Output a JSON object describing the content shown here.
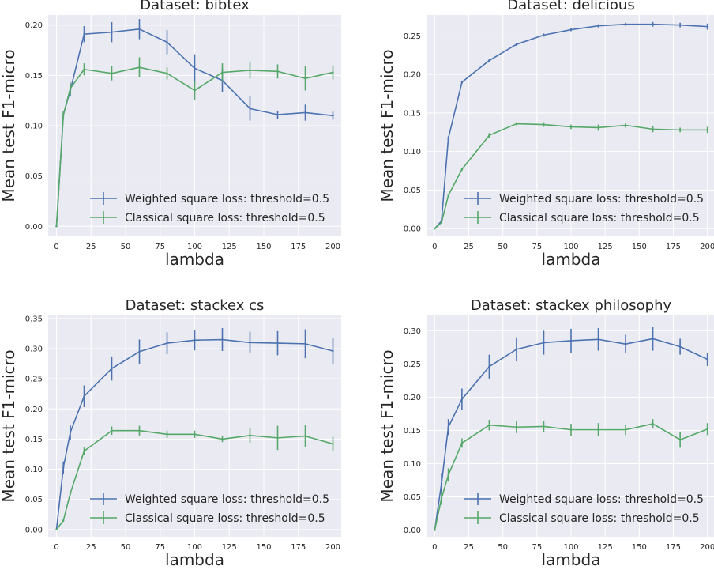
{
  "figure": {
    "series_names": [
      "Weighted square loss: threshold=0.5",
      "Classical square loss: threshold=0.5"
    ],
    "colors": {
      "weighted": "#4c72b0",
      "classical": "#55a868",
      "panel_bg": "#eaeaf2",
      "grid": "#ffffff",
      "text": "#262626"
    }
  },
  "chart_data": [
    {
      "type": "line",
      "title": "Dataset: bibtex",
      "xlabel": "lambda",
      "ylabel": "Mean test F1-micro",
      "x": [
        0,
        5,
        10,
        20,
        40,
        60,
        80,
        100,
        120,
        140,
        160,
        180,
        200
      ],
      "xticks": [
        0,
        25,
        50,
        75,
        100,
        125,
        150,
        175,
        200
      ],
      "yticks": [
        0.0,
        0.05,
        0.1,
        0.15,
        0.2
      ],
      "ytick_labels": [
        "0.00",
        "0.05",
        "0.10",
        "0.15",
        "0.20"
      ],
      "xlim": [
        -6,
        206
      ],
      "ylim": [
        -0.01,
        0.21
      ],
      "grid": true,
      "legend": "lower-right",
      "series": [
        {
          "name": "Weighted square loss: threshold=0.5",
          "values": [
            0.0,
            0.111,
            0.135,
            0.191,
            0.193,
            0.196,
            0.183,
            0.157,
            0.145,
            0.117,
            0.111,
            0.113,
            0.11
          ],
          "errors": [
            0.0,
            0.003,
            0.006,
            0.008,
            0.01,
            0.01,
            0.012,
            0.014,
            0.012,
            0.012,
            0.004,
            0.008,
            0.004
          ]
        },
        {
          "name": "Classical square loss: threshold=0.5",
          "values": [
            0.0,
            0.111,
            0.137,
            0.156,
            0.152,
            0.158,
            0.152,
            0.135,
            0.153,
            0.155,
            0.154,
            0.147,
            0.153
          ],
          "errors": [
            0.0,
            0.003,
            0.006,
            0.006,
            0.007,
            0.01,
            0.006,
            0.009,
            0.009,
            0.008,
            0.007,
            0.012,
            0.007
          ]
        }
      ]
    },
    {
      "type": "line",
      "title": "Dataset: delicious",
      "xlabel": "lambda",
      "ylabel": "Mean test F1-micro",
      "x": [
        0,
        5,
        10,
        20,
        40,
        60,
        80,
        100,
        120,
        140,
        160,
        180,
        200
      ],
      "xticks": [
        0,
        25,
        50,
        75,
        100,
        125,
        150,
        175,
        200
      ],
      "yticks": [
        0.0,
        0.05,
        0.1,
        0.15,
        0.2,
        0.25
      ],
      "ytick_labels": [
        "0.00",
        "0.05",
        "0.10",
        "0.15",
        "0.20",
        "0.25"
      ],
      "xlim": [
        -6,
        206
      ],
      "ylim": [
        -0.01,
        0.277
      ],
      "grid": true,
      "legend": "lower-right",
      "series": [
        {
          "name": "Weighted square loss: threshold=0.5",
          "values": [
            0.0,
            0.01,
            0.117,
            0.19,
            0.218,
            0.239,
            0.251,
            0.258,
            0.263,
            0.265,
            0.265,
            0.264,
            0.262
          ],
          "errors": [
            0.0,
            0.002,
            0.003,
            0.002,
            0.002,
            0.002,
            0.002,
            0.002,
            0.002,
            0.002,
            0.003,
            0.003,
            0.004
          ]
        },
        {
          "name": "Classical square loss: threshold=0.5",
          "values": [
            0.0,
            0.008,
            0.043,
            0.077,
            0.121,
            0.136,
            0.135,
            0.132,
            0.131,
            0.134,
            0.129,
            0.128,
            0.128
          ],
          "errors": [
            0.0,
            0.001,
            0.002,
            0.002,
            0.003,
            0.002,
            0.003,
            0.003,
            0.004,
            0.003,
            0.004,
            0.003,
            0.004
          ]
        }
      ]
    },
    {
      "type": "line",
      "title": "Dataset: stackex cs",
      "xlabel": "lambda",
      "ylabel": "Mean test F1-micro",
      "x": [
        0,
        5,
        10,
        20,
        40,
        60,
        80,
        100,
        120,
        140,
        160,
        180,
        200
      ],
      "xticks": [
        0,
        25,
        50,
        75,
        100,
        125,
        150,
        175,
        200
      ],
      "yticks": [
        0.0,
        0.05,
        0.1,
        0.15,
        0.2,
        0.25,
        0.3,
        0.35
      ],
      "ytick_labels": [
        "0.00",
        "0.05",
        "0.10",
        "0.15",
        "0.20",
        "0.25",
        "0.30",
        "0.35"
      ],
      "xlim": [
        -6,
        206
      ],
      "ylim": [
        -0.012,
        0.355
      ],
      "grid": true,
      "legend": "lower-right",
      "series": [
        {
          "name": "Weighted square loss: threshold=0.5",
          "values": [
            0.0,
            0.103,
            0.161,
            0.221,
            0.267,
            0.295,
            0.309,
            0.314,
            0.315,
            0.31,
            0.309,
            0.308,
            0.296
          ],
          "errors": [
            0.0,
            0.01,
            0.012,
            0.018,
            0.02,
            0.02,
            0.018,
            0.017,
            0.019,
            0.018,
            0.02,
            0.024,
            0.022
          ]
        },
        {
          "name": "Classical square loss: threshold=0.5",
          "values": [
            0.0,
            0.015,
            0.06,
            0.13,
            0.164,
            0.164,
            0.158,
            0.158,
            0.15,
            0.156,
            0.152,
            0.155,
            0.142
          ],
          "errors": [
            0.0,
            0.002,
            0.003,
            0.006,
            0.007,
            0.008,
            0.006,
            0.006,
            0.005,
            0.012,
            0.02,
            0.018,
            0.012
          ]
        }
      ]
    },
    {
      "type": "line",
      "title": "Dataset: stackex philosophy",
      "xlabel": "lambda",
      "ylabel": "Mean test F1-micro",
      "x": [
        0,
        5,
        10,
        20,
        40,
        60,
        80,
        100,
        120,
        140,
        160,
        180,
        200
      ],
      "xticks": [
        0,
        25,
        50,
        75,
        100,
        125,
        150,
        175,
        200
      ],
      "yticks": [
        0.0,
        0.05,
        0.1,
        0.15,
        0.2,
        0.25,
        0.3
      ],
      "ytick_labels": [
        "0.00",
        "0.05",
        "0.10",
        "0.15",
        "0.20",
        "0.25",
        "0.30"
      ],
      "xlim": [
        -6,
        206
      ],
      "ylim": [
        -0.01,
        0.323
      ],
      "grid": true,
      "legend": "lower-right",
      "series": [
        {
          "name": "Weighted square loss: threshold=0.5",
          "values": [
            0.0,
            0.07,
            0.155,
            0.197,
            0.246,
            0.272,
            0.282,
            0.285,
            0.287,
            0.28,
            0.288,
            0.276,
            0.257
          ],
          "errors": [
            0.0,
            0.016,
            0.012,
            0.016,
            0.018,
            0.018,
            0.018,
            0.018,
            0.017,
            0.014,
            0.018,
            0.012,
            0.01
          ]
        },
        {
          "name": "Classical square loss: threshold=0.5",
          "values": [
            0.0,
            0.048,
            0.083,
            0.131,
            0.158,
            0.155,
            0.156,
            0.151,
            0.151,
            0.151,
            0.16,
            0.136,
            0.152
          ],
          "errors": [
            0.0,
            0.01,
            0.01,
            0.007,
            0.008,
            0.009,
            0.008,
            0.009,
            0.01,
            0.008,
            0.007,
            0.012,
            0.009
          ]
        }
      ]
    }
  ]
}
